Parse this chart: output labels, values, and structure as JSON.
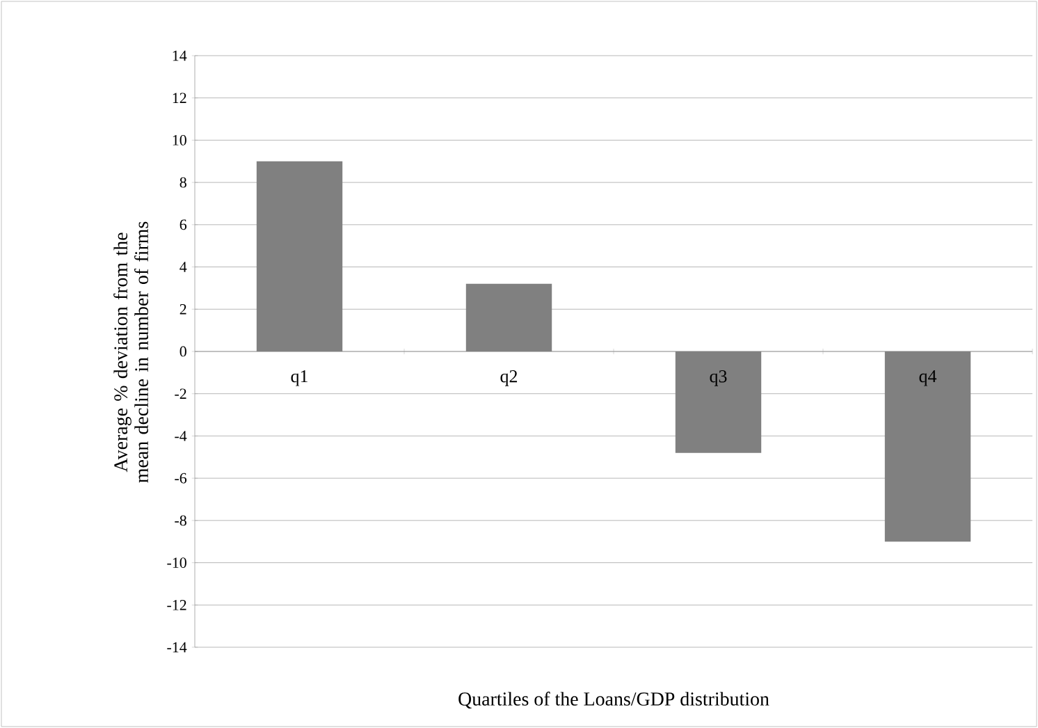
{
  "chart_data": {
    "type": "bar",
    "categories": [
      "q1",
      "q2",
      "q3",
      "q4"
    ],
    "values": [
      9.0,
      3.2,
      -4.8,
      -9.0
    ],
    "color": "#808080",
    "ylim": [
      -14,
      14
    ],
    "yticks": [
      -14,
      -12,
      -10,
      -8,
      -6,
      -4,
      -2,
      0,
      2,
      4,
      6,
      8,
      10,
      12,
      14
    ],
    "grid": "y",
    "ylabel": "Average % deviation from the mean decline in number of firms",
    "xlabel": "Quartiles of the Loans/GDP distribution"
  }
}
